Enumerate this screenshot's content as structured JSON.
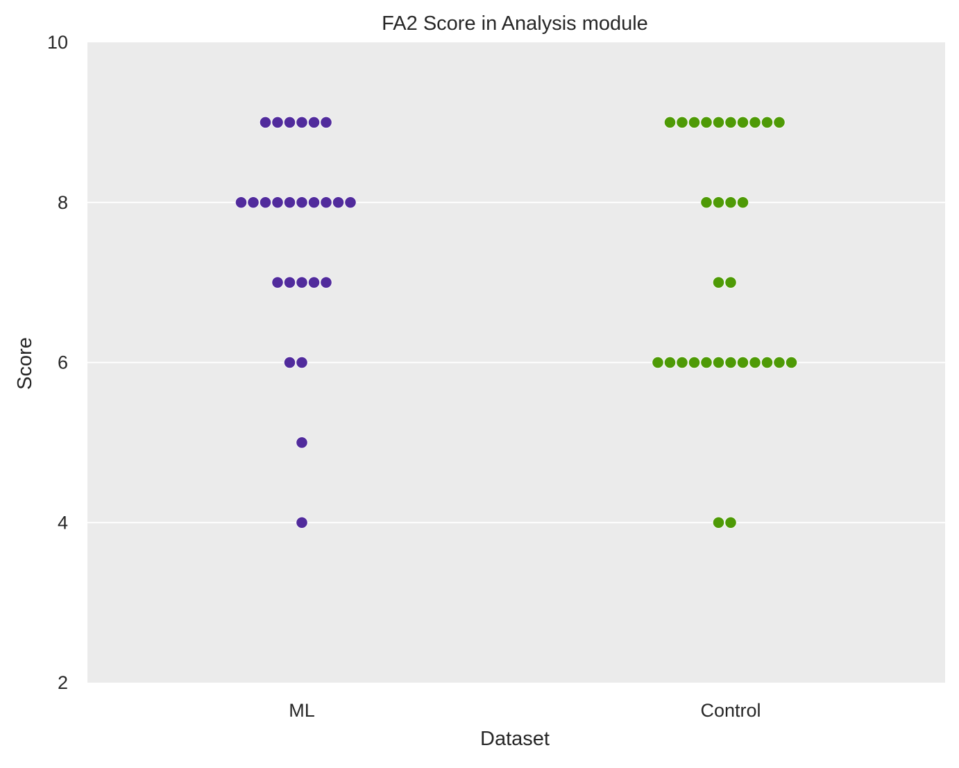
{
  "chart_data": {
    "type": "scatter",
    "subtype": "swarm",
    "title": "FA2 Score in Analysis module",
    "xlabel": "Dataset",
    "ylabel": "Score",
    "categories": [
      "ML",
      "Control"
    ],
    "ylim": [
      2,
      10
    ],
    "yticks": [
      "2",
      "4",
      "6",
      "8",
      "10"
    ],
    "grid": true,
    "background_color": "#EBEBEB",
    "grid_color": "#FFFFFF",
    "series": [
      {
        "category": "ML",
        "color": "#512B9C",
        "values": [
          9,
          9,
          9,
          9,
          9,
          9,
          8,
          8,
          8,
          8,
          8,
          8,
          8,
          8,
          8,
          8,
          7,
          7,
          7,
          7,
          7,
          6,
          6,
          5,
          4
        ]
      },
      {
        "category": "Control",
        "color": "#4E9A06",
        "values": [
          9,
          9,
          9,
          9,
          9,
          9,
          9,
          9,
          9,
          9,
          8,
          8,
          8,
          8,
          7,
          7,
          6,
          6,
          6,
          6,
          6,
          6,
          6,
          6,
          6,
          6,
          6,
          6,
          4,
          4
        ]
      }
    ]
  }
}
